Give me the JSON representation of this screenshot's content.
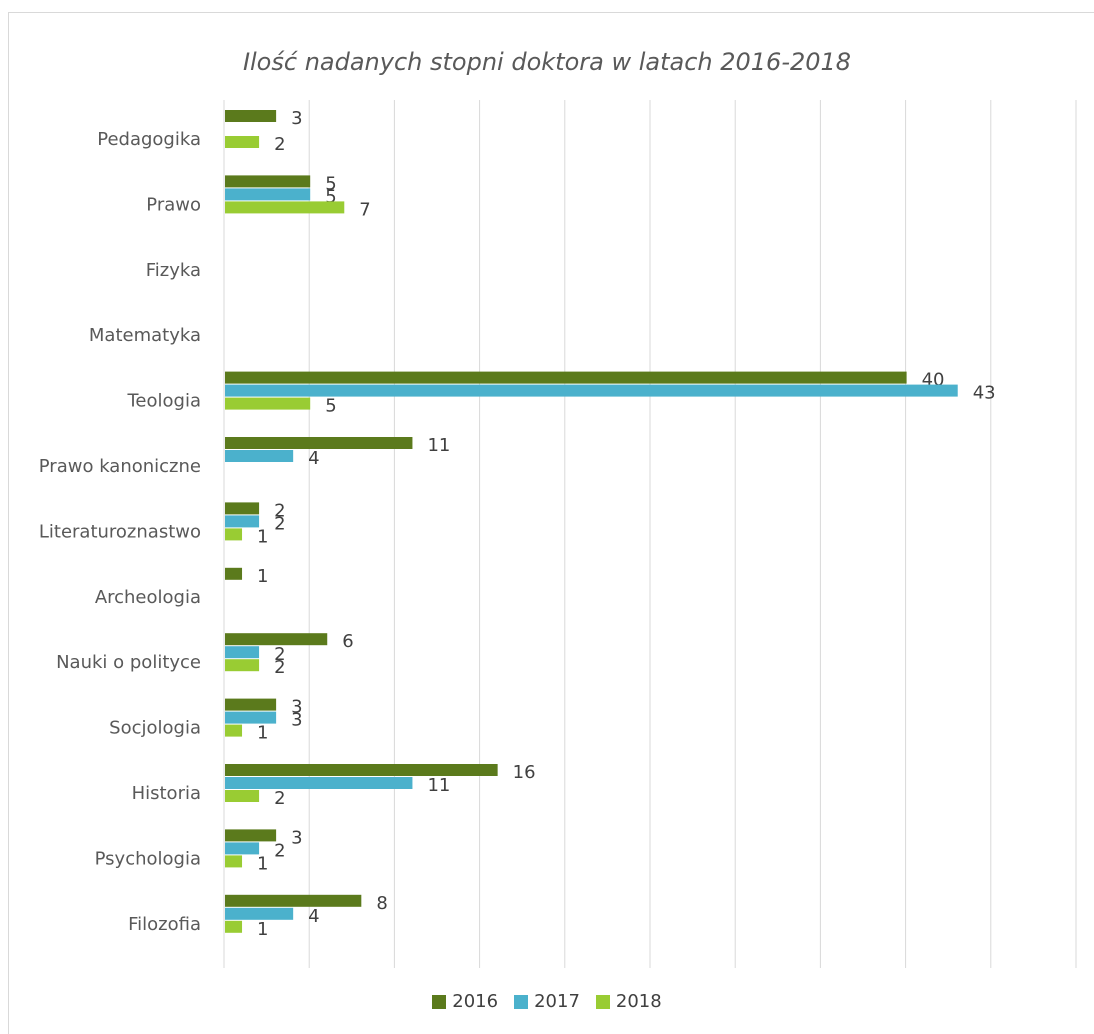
{
  "chart_data": {
    "type": "bar",
    "orientation": "horizontal",
    "title": "Ilość nadanych stopni doktora w latach 2016-2018",
    "categories": [
      "Pedagogika",
      "Prawo",
      "Fizyka",
      "Matematyka",
      "Teologia",
      "Prawo kanoniczne",
      "Literaturoznastwo",
      "Archeologia",
      "Nauki o polityce",
      "Socjologia",
      "Historia",
      "Psychologia",
      "Filozofia"
    ],
    "series": [
      {
        "name": "2016",
        "color": "#5b7a1c",
        "values": [
          3,
          5,
          null,
          null,
          40,
          11,
          2,
          1,
          6,
          3,
          16,
          3,
          8
        ]
      },
      {
        "name": "2017",
        "color": "#4bb1cc",
        "values": [
          null,
          5,
          null,
          null,
          43,
          4,
          2,
          null,
          2,
          3,
          11,
          2,
          4
        ]
      },
      {
        "name": "2018",
        "color": "#99cc33",
        "values": [
          2,
          7,
          null,
          null,
          5,
          null,
          1,
          null,
          2,
          1,
          2,
          1,
          1
        ]
      }
    ],
    "xlim": [
      0,
      50
    ],
    "grid": true,
    "legend_position": "bottom"
  }
}
